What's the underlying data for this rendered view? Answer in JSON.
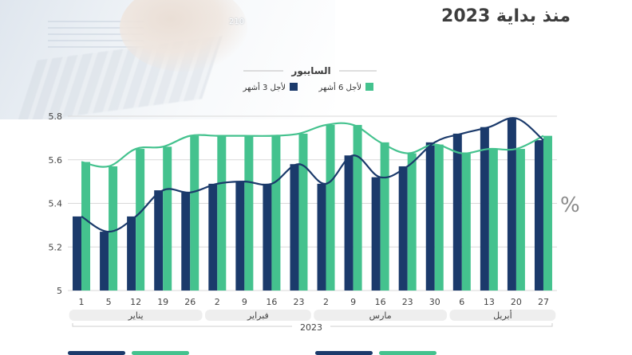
{
  "title": "منذ بداية 2023",
  "photo_number": "210",
  "colors": {
    "three_month": "#1b3a6b",
    "six_month": "#44c28e",
    "axis_text": "#444444",
    "grid": "#d9d9d9",
    "pill": "#eeeeee"
  },
  "chart_data": {
    "type": "bar",
    "title": "السايبور",
    "ylabel": "%",
    "ylim": [
      5.0,
      5.8
    ],
    "yticks": [
      5,
      5.2,
      5.4,
      5.6,
      5.8
    ],
    "grid": true,
    "legend_position": "top-right",
    "categories": [
      "1",
      "5",
      "12",
      "19",
      "26",
      "2",
      "9",
      "16",
      "23",
      "2",
      "9",
      "16",
      "23",
      "30",
      "6",
      "13",
      "20",
      "27"
    ],
    "series": [
      {
        "name": "لأجل 3 أشهر",
        "color": "#1b3a6b",
        "values": [
          5.34,
          5.27,
          5.34,
          5.46,
          5.45,
          5.49,
          5.5,
          5.49,
          5.58,
          5.49,
          5.62,
          5.52,
          5.57,
          5.68,
          5.72,
          5.75,
          5.79,
          5.69
        ]
      },
      {
        "name": "لأجل 6 أشهر",
        "color": "#44c28e",
        "values": [
          5.59,
          5.57,
          5.65,
          5.66,
          5.71,
          5.71,
          5.71,
          5.71,
          5.72,
          5.76,
          5.76,
          5.68,
          5.63,
          5.67,
          5.63,
          5.65,
          5.65,
          5.71
        ]
      }
    ],
    "months": [
      {
        "label": "يناير",
        "start": 0,
        "end": 4
      },
      {
        "label": "فبراير",
        "start": 5,
        "end": 8
      },
      {
        "label": "مارس",
        "start": 9,
        "end": 13
      },
      {
        "label": "أبريل",
        "start": 14,
        "end": 17
      }
    ],
    "year_label": "2023"
  }
}
